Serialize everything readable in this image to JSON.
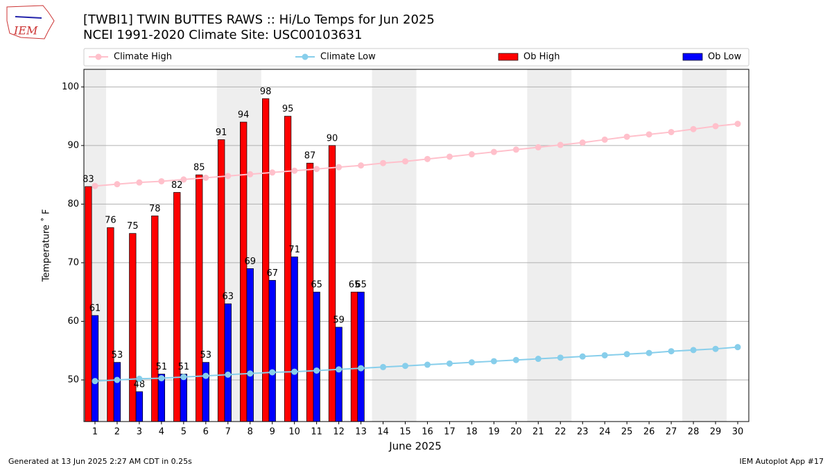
{
  "chart_data": {
    "type": "bar",
    "title": "[TWBI1] TWIN BUTTES RAWS :: Hi/Lo Temps for Jun 2025",
    "subtitle": "NCEI 1991-2020 Climate Site: USC00103631",
    "logo_text": "IEM",
    "xlabel": "June 2025",
    "ylabel": "Temperature ˚ F",
    "footer_left": "Generated at 13 Jun 2025 2:27 AM CDT in 0.25s",
    "footer_right": "IEM Autoplot App #17",
    "x": [
      1,
      2,
      3,
      4,
      5,
      6,
      7,
      8,
      9,
      10,
      11,
      12,
      13,
      14,
      15,
      16,
      17,
      18,
      19,
      20,
      21,
      22,
      23,
      24,
      25,
      26,
      27,
      28,
      29,
      30
    ],
    "xlim": [
      0.5,
      30.5
    ],
    "xticks": [
      1,
      2,
      3,
      4,
      5,
      6,
      7,
      8,
      9,
      10,
      11,
      12,
      13,
      14,
      15,
      16,
      17,
      18,
      19,
      20,
      21,
      22,
      23,
      24,
      25,
      26,
      27,
      28,
      29,
      30
    ],
    "ylim": [
      42.9,
      103
    ],
    "yticks": [
      50,
      60,
      70,
      80,
      90,
      100
    ],
    "grid": true,
    "weekend_bands": [
      [
        0.5,
        1.5
      ],
      [
        6.5,
        8.5
      ],
      [
        13.5,
        15.5
      ],
      [
        20.5,
        22.5
      ],
      [
        27.5,
        29.5
      ]
    ],
    "series": [
      {
        "name": "Climate High",
        "type": "line",
        "color": "#ffc0cb",
        "values": [
          83.1,
          83.4,
          83.7,
          83.9,
          84.2,
          84.5,
          84.8,
          85.1,
          85.4,
          85.7,
          86.0,
          86.3,
          86.6,
          87.0,
          87.3,
          87.7,
          88.1,
          88.5,
          88.9,
          89.3,
          89.7,
          90.1,
          90.5,
          91.0,
          91.5,
          91.9,
          92.3,
          92.8,
          93.3,
          93.7
        ]
      },
      {
        "name": "Climate Low",
        "type": "line",
        "color": "#87ceeb",
        "values": [
          49.8,
          50.0,
          50.2,
          50.3,
          50.5,
          50.7,
          50.9,
          51.1,
          51.3,
          51.4,
          51.6,
          51.8,
          52.0,
          52.2,
          52.4,
          52.6,
          52.8,
          53.0,
          53.2,
          53.4,
          53.6,
          53.8,
          54.0,
          54.2,
          54.4,
          54.6,
          54.9,
          55.1,
          55.3,
          55.6
        ]
      },
      {
        "name": "Ob High",
        "type": "bar",
        "color": "#ff0000",
        "offset": -0.3,
        "values": [
          83,
          76,
          75,
          78,
          82,
          85,
          91,
          94,
          98,
          95,
          87,
          90,
          65,
          null,
          null,
          null,
          null,
          null,
          null,
          null,
          null,
          null,
          null,
          null,
          null,
          null,
          null,
          null,
          null,
          null
        ]
      },
      {
        "name": "Ob Low",
        "type": "bar",
        "color": "#0000ff",
        "offset": 0,
        "values": [
          61,
          53,
          48,
          51,
          51,
          53,
          63,
          69,
          67,
          71,
          65,
          59,
          65,
          null,
          null,
          null,
          null,
          null,
          null,
          null,
          null,
          null,
          null,
          null,
          null,
          null,
          null,
          null,
          null,
          null
        ]
      }
    ]
  }
}
